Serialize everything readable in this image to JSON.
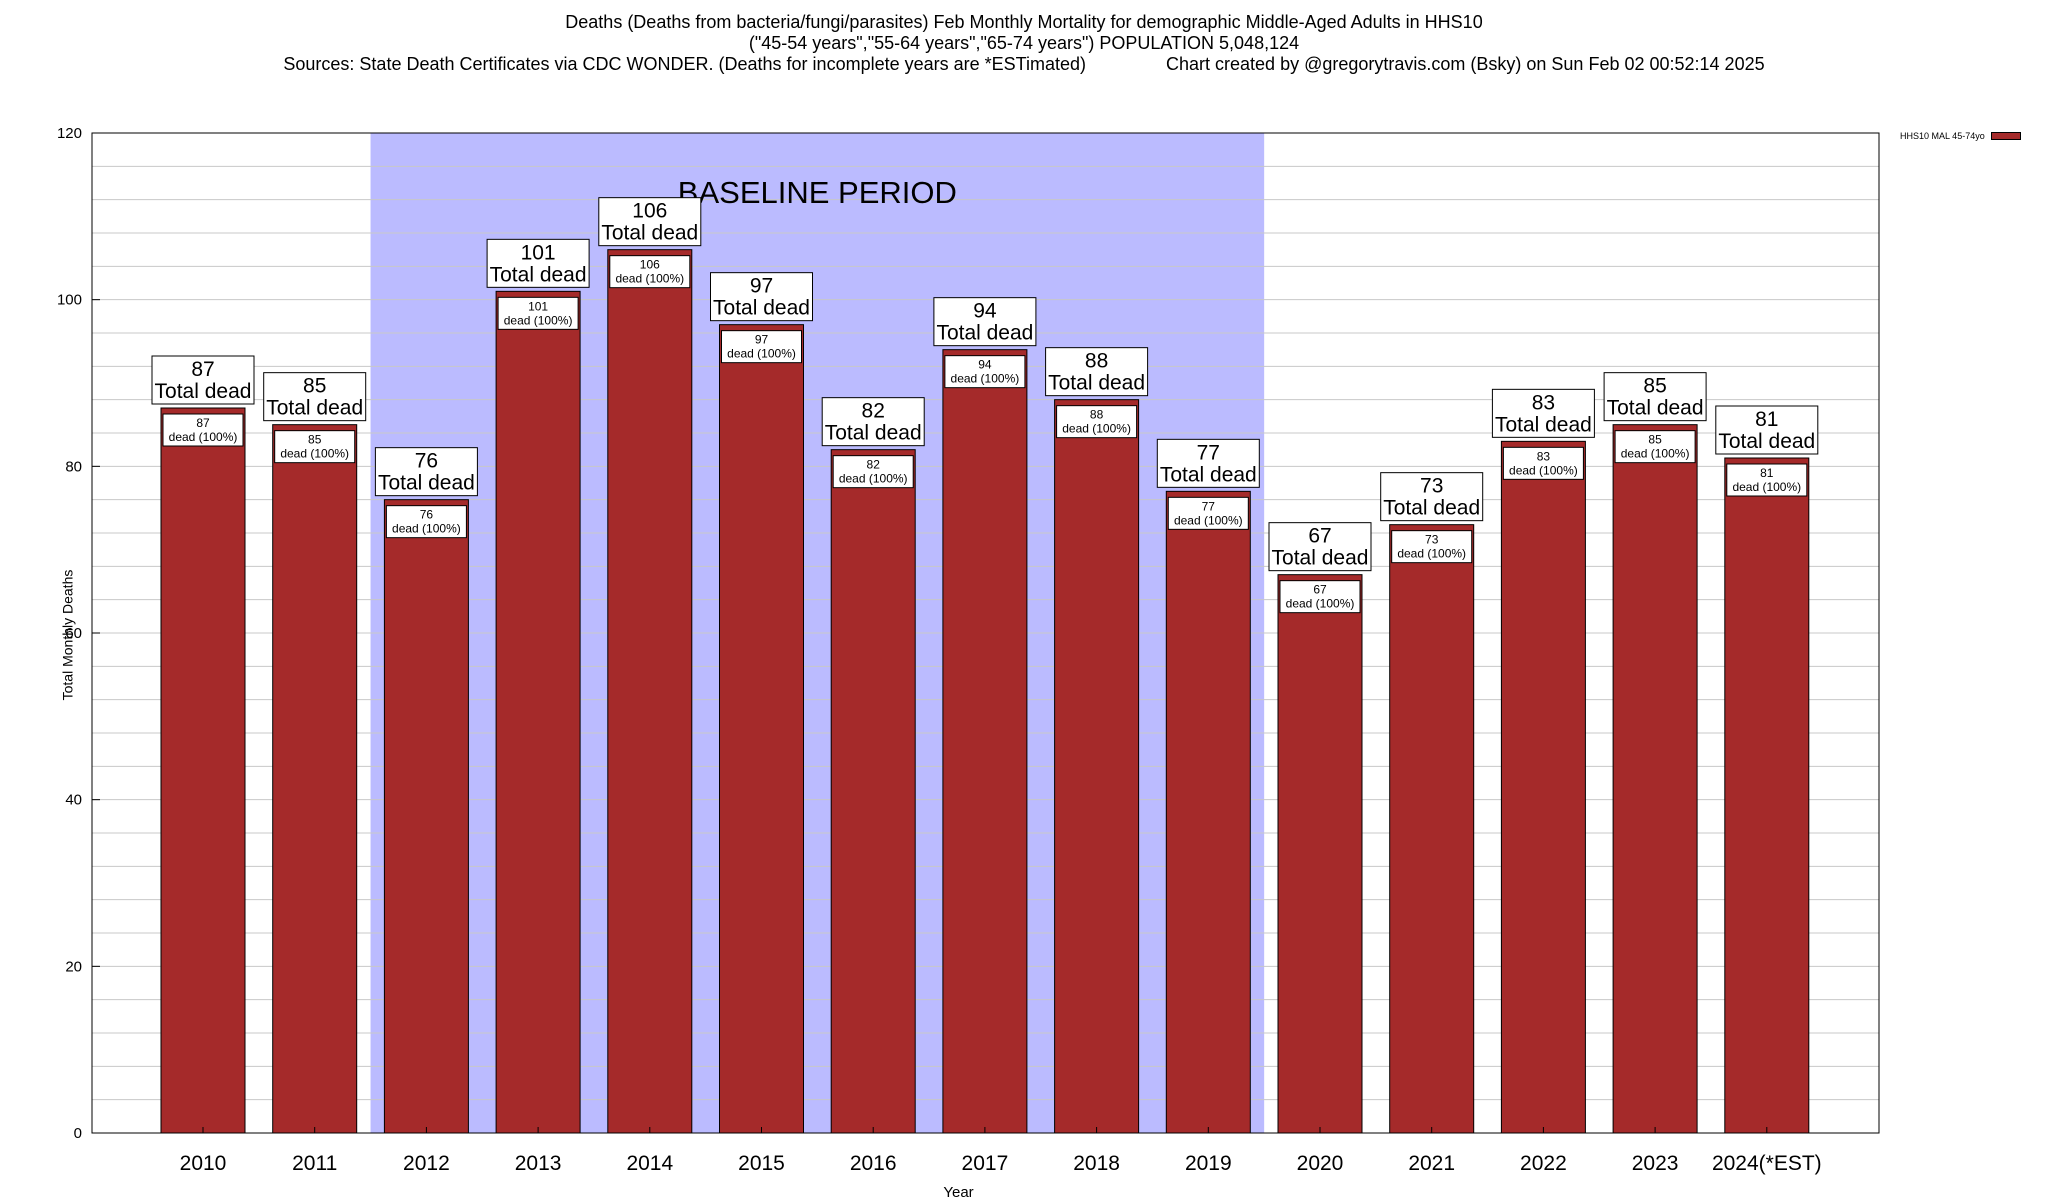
{
  "chart_data": {
    "type": "bar",
    "title": "Deaths (Deaths from bacteria/fungi/parasites) Feb Monthly Mortality for demographic Middle-Aged Adults in HHS10",
    "subtitle": "(\"45-54 years\",\"55-64 years\",\"65-74 years\") POPULATION 5,048,124",
    "source": "Sources: State Death Certificates via CDC WONDER. (Deaths for incomplete years are *ESTimated)",
    "credit": "Chart created by @gregorytravis.com (Bsky) on Sun Feb 02 00:52:14 2025",
    "xlabel": "Year",
    "ylabel": "Total Monthly Deaths",
    "ylim": [
      0,
      120
    ],
    "yticks": [
      0,
      20,
      40,
      60,
      80,
      100,
      120
    ],
    "categories": [
      "2010",
      "2011",
      "2012",
      "2013",
      "2014",
      "2015",
      "2016",
      "2017",
      "2018",
      "2019",
      "2020",
      "2021",
      "2022",
      "2023",
      "2024(*EST)"
    ],
    "series": [
      {
        "name": "HHS10 MAL 45-74yo",
        "color": "#a52a2a",
        "values": [
          87,
          85,
          76,
          101,
          106,
          97,
          82,
          94,
          88,
          77,
          67,
          73,
          83,
          85,
          81
        ]
      }
    ],
    "baseline": {
      "label": "BASELINE PERIOD",
      "from": "2012",
      "to": "2019",
      "color": "#bbbbff"
    },
    "bar_label_line": "Total dead",
    "inner_label_text": "dead (100%)",
    "legend": "top-right",
    "grid": true
  }
}
